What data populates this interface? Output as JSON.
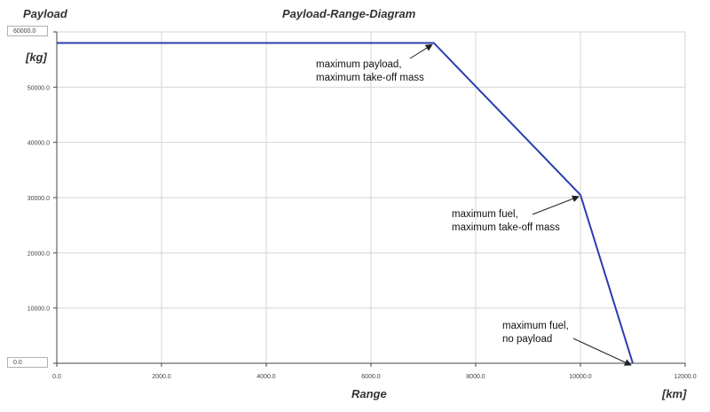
{
  "chart_data": {
    "type": "line",
    "title": "Payload-Range-Diagram",
    "ylabel": "Payload",
    "ylabel_unit": "[kg]",
    "xlabel": "Range",
    "xlabel_unit": "[km]",
    "xlim": [
      0,
      12000
    ],
    "ylim": [
      0,
      60000
    ],
    "x_ticks": [
      "0.0",
      "2000.0",
      "4000.0",
      "6000.0",
      "8000.0",
      "10000.0",
      "12000.0"
    ],
    "y_ticks": [
      "0.0",
      "10000.0",
      "20000.0",
      "30000.0",
      "40000.0",
      "50000.0",
      "60000.0"
    ],
    "grid": true,
    "line_color": "#2a3db0",
    "series": [
      {
        "x": [
          0,
          7200,
          10000,
          11000
        ],
        "y": [
          58000,
          58000,
          30500,
          0
        ]
      }
    ],
    "annotations": [
      {
        "lines": [
          "maximum payload,",
          "maximum take-off mass"
        ],
        "x": 7200,
        "y": 58000
      },
      {
        "lines": [
          "maximum fuel,",
          "maximum take-off mass"
        ],
        "x": 10000,
        "y": 30500
      },
      {
        "lines": [
          "maximum fuel,",
          "no payload"
        ],
        "x": 11000,
        "y": 0
      }
    ]
  }
}
